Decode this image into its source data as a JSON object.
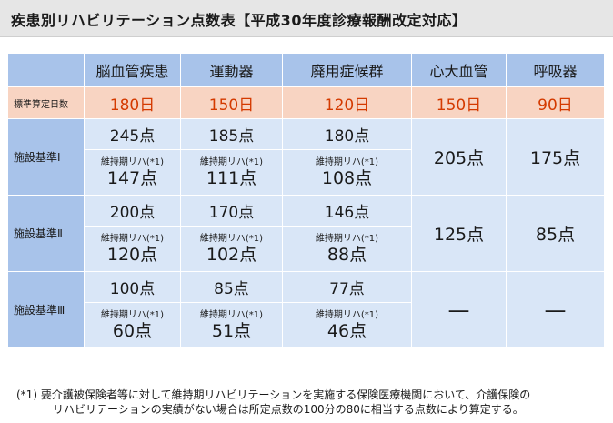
{
  "title": "疾患別リハビリテーション点数表【平成30年度診療報酬改定対応】",
  "columns": [
    "脳血管疾患",
    "運動器",
    "廃用症候群",
    "心大血管",
    "呼吸器"
  ],
  "standard": {
    "label": "標準算定日数",
    "values": [
      "180日",
      "150日",
      "120日",
      "150日",
      "90日"
    ]
  },
  "maintenance_label": "維持期リハ(*1)",
  "tiers": [
    {
      "label": "施設基準Ⅰ",
      "scores": [
        "245点",
        "185点",
        "180点"
      ],
      "maintenance": [
        "147点",
        "111点",
        "108点"
      ],
      "merged": [
        "205点",
        "175点"
      ]
    },
    {
      "label": "施設基準Ⅱ",
      "scores": [
        "200点",
        "170点",
        "146点"
      ],
      "maintenance": [
        "120点",
        "102点",
        "88点"
      ],
      "merged": [
        "125点",
        "85点"
      ]
    },
    {
      "label": "施設基準Ⅲ",
      "scores": [
        "100点",
        "85点",
        "77点"
      ],
      "maintenance": [
        "60点",
        "51点",
        "46点"
      ],
      "merged": [
        "—",
        "—"
      ]
    }
  ],
  "footnote": {
    "line1": "(*1) 要介護被保険者等に対して維持期リハビリテーションを実施する保険医療機関において、介護保険の",
    "line2": "リハビリテーションの実績がない場合は所定点数の100分の80に相当する点数により算定する。"
  }
}
